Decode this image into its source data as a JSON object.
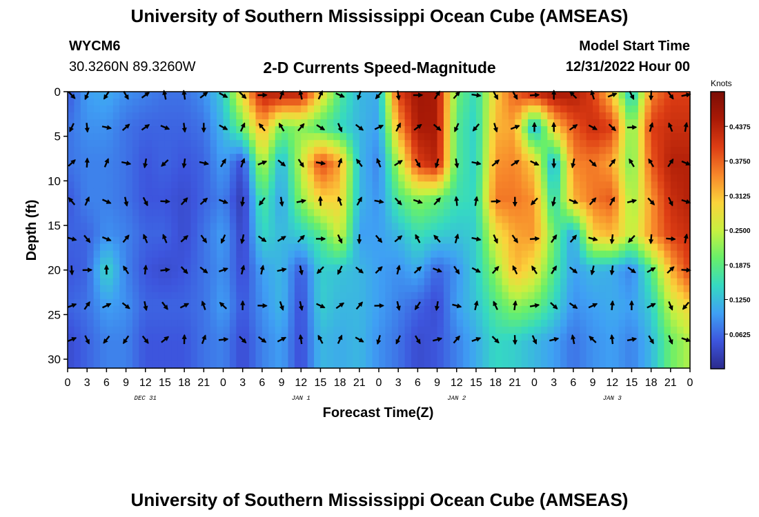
{
  "header": {
    "title": "University of Southern Mississippi Ocean Cube (AMSEAS)",
    "station_id": "WYCM6",
    "coords": "30.3260N  89.3260W",
    "subtitle": "2-D Currents Speed-Magnitude",
    "model_start_label": "Model Start Time",
    "model_start_value": "12/31/2022 Hour 00"
  },
  "footer": {
    "title": "University of Southern Mississippi Ocean Cube (AMSEAS)"
  },
  "chart_data": {
    "type": "heatmap",
    "title": "2-D Currents Speed-Magnitude",
    "xlabel": "Forecast Time(Z)",
    "ylabel": "Depth (ft)",
    "x_ticks": [
      "0",
      "3",
      "6",
      "9",
      "12",
      "15",
      "18",
      "21",
      "0",
      "3",
      "6",
      "9",
      "12",
      "15",
      "18",
      "21",
      "0",
      "3",
      "6",
      "9",
      "12",
      "15",
      "18",
      "21",
      "0",
      "3",
      "6",
      "9",
      "12",
      "15",
      "18",
      "21",
      "0"
    ],
    "x_range_hours": [
      0,
      96
    ],
    "date_labels": [
      {
        "label": "DEC 31",
        "hour": 12
      },
      {
        "label": "JAN 1",
        "hour": 36
      },
      {
        "label": "JAN 2",
        "hour": 60
      },
      {
        "label": "JAN 3",
        "hour": 84
      }
    ],
    "y_ticks": [
      0,
      5,
      10,
      15,
      20,
      25,
      30
    ],
    "ylim": [
      0,
      31
    ],
    "colorbar": {
      "unit": "Knots",
      "range": [
        0,
        0.5
      ],
      "tick_values": [
        0.0625,
        0.125,
        0.1875,
        0.25,
        0.3125,
        0.375,
        0.4375
      ],
      "tick_labels": [
        "0.0625",
        "0.1250",
        "0.1875",
        "0.2500",
        "0.3125",
        "0.3750",
        "0.4375"
      ]
    },
    "vector_depths_ft": [
      0,
      4,
      8,
      12.3,
      16.5,
      20,
      24,
      27.8
    ],
    "speed_field": {
      "description": "Current speed (knots) at depth (ft) by forecast hour, approximate readings",
      "hours": [
        0,
        3,
        6,
        9,
        12,
        15,
        18,
        21,
        24,
        27,
        30,
        33,
        36,
        39,
        42,
        45,
        48,
        51,
        54,
        57,
        60,
        63,
        66,
        69,
        72,
        75,
        78,
        81,
        84,
        87,
        90,
        93,
        96
      ],
      "depths": [
        0,
        4,
        8,
        12,
        16,
        20,
        24,
        28
      ],
      "values": [
        [
          0.05,
          0.1,
          0.11,
          0.09,
          0.08,
          0.07,
          0.07,
          0.09,
          0.14,
          0.3,
          0.44,
          0.45,
          0.44,
          0.3,
          0.18,
          0.12,
          0.11,
          0.4,
          0.46,
          0.45,
          0.2,
          0.15,
          0.3,
          0.38,
          0.44,
          0.46,
          0.45,
          0.4,
          0.3,
          0.12,
          0.35,
          0.4,
          0.4
        ],
        [
          0.07,
          0.09,
          0.09,
          0.07,
          0.06,
          0.06,
          0.06,
          0.07,
          0.12,
          0.2,
          0.33,
          0.2,
          0.22,
          0.18,
          0.15,
          0.12,
          0.1,
          0.33,
          0.45,
          0.45,
          0.18,
          0.14,
          0.32,
          0.33,
          0.1,
          0.3,
          0.38,
          0.42,
          0.4,
          0.2,
          0.4,
          0.42,
          0.42
        ],
        [
          0.07,
          0.08,
          0.08,
          0.07,
          0.05,
          0.06,
          0.05,
          0.06,
          0.1,
          0.04,
          0.25,
          0.11,
          0.25,
          0.4,
          0.33,
          0.12,
          0.08,
          0.24,
          0.4,
          0.44,
          0.18,
          0.14,
          0.34,
          0.35,
          0.3,
          0.1,
          0.35,
          0.36,
          0.33,
          0.2,
          0.38,
          0.44,
          0.44
        ],
        [
          0.05,
          0.08,
          0.08,
          0.07,
          0.05,
          0.05,
          0.04,
          0.06,
          0.08,
          0.02,
          0.18,
          0.1,
          0.22,
          0.3,
          0.3,
          0.12,
          0.09,
          0.18,
          0.22,
          0.2,
          0.16,
          0.15,
          0.36,
          0.36,
          0.34,
          0.14,
          0.32,
          0.36,
          0.38,
          0.22,
          0.34,
          0.42,
          0.44
        ],
        [
          0.06,
          0.06,
          0.09,
          0.08,
          0.06,
          0.06,
          0.04,
          0.07,
          0.1,
          0.03,
          0.15,
          0.12,
          0.14,
          0.18,
          0.26,
          0.1,
          0.1,
          0.12,
          0.16,
          0.14,
          0.13,
          0.14,
          0.28,
          0.33,
          0.34,
          0.2,
          0.1,
          0.3,
          0.32,
          0.24,
          0.34,
          0.4,
          0.42
        ],
        [
          0.05,
          0.06,
          0.15,
          0.08,
          0.05,
          0.04,
          0.05,
          0.07,
          0.09,
          0.04,
          0.1,
          0.12,
          0.05,
          0.14,
          0.13,
          0.12,
          0.1,
          0.09,
          0.11,
          0.06,
          0.09,
          0.14,
          0.22,
          0.32,
          0.28,
          0.18,
          0.1,
          0.12,
          0.11,
          0.08,
          0.18,
          0.32,
          0.4
        ],
        [
          0.06,
          0.07,
          0.1,
          0.09,
          0.06,
          0.06,
          0.06,
          0.07,
          0.1,
          0.05,
          0.09,
          0.12,
          0.04,
          0.14,
          0.12,
          0.12,
          0.1,
          0.08,
          0.06,
          0.04,
          0.1,
          0.13,
          0.18,
          0.22,
          0.2,
          0.15,
          0.09,
          0.1,
          0.11,
          0.1,
          0.14,
          0.25,
          0.3
        ],
        [
          0.04,
          0.06,
          0.08,
          0.08,
          0.05,
          0.05,
          0.05,
          0.07,
          0.08,
          0.04,
          0.08,
          0.1,
          0.04,
          0.12,
          0.11,
          0.12,
          0.09,
          0.07,
          0.04,
          0.05,
          0.08,
          0.11,
          0.15,
          0.14,
          0.12,
          0.1,
          0.07,
          0.09,
          0.1,
          0.08,
          0.12,
          0.2,
          0.24
        ]
      ]
    }
  }
}
